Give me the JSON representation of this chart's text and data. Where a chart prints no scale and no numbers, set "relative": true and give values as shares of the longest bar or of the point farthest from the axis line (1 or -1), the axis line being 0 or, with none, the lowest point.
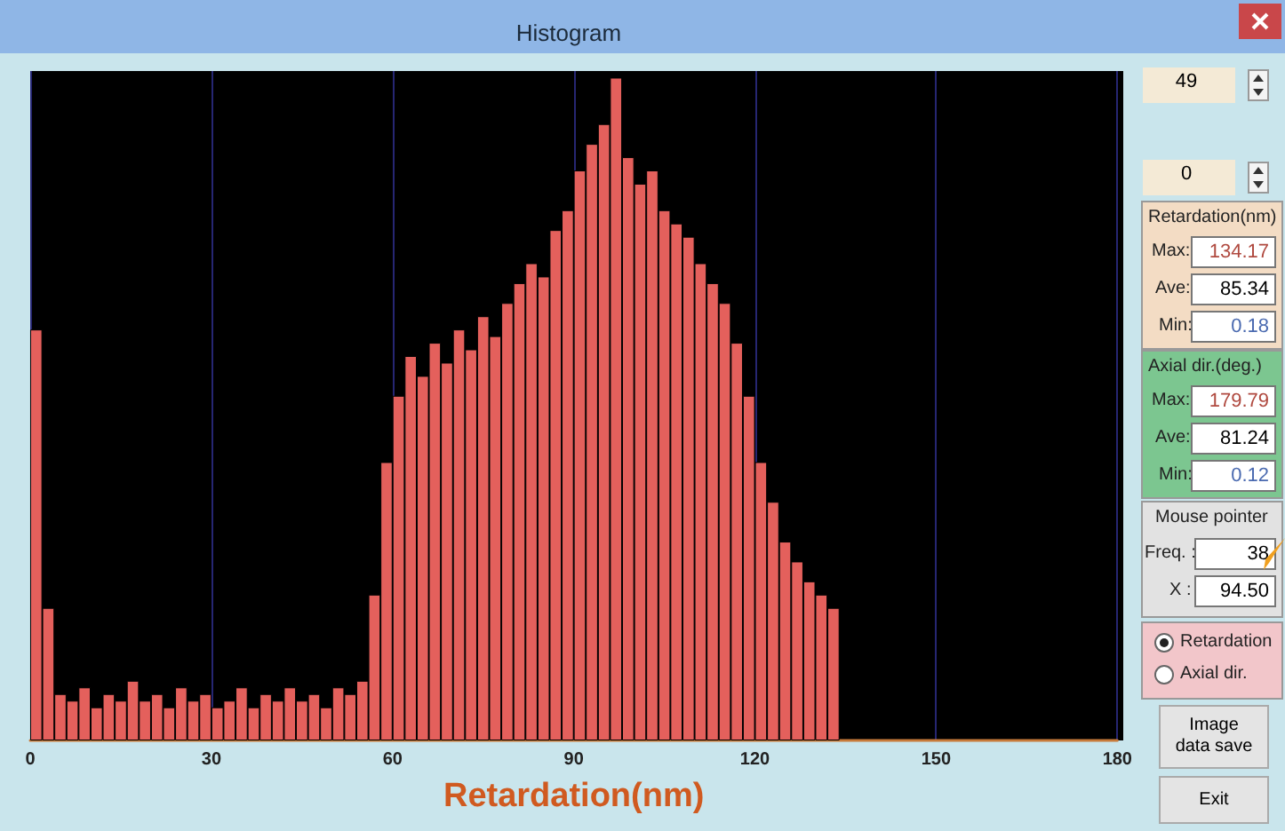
{
  "chart_data": [
    {
      "type": "bar",
      "title": "Histogram",
      "xlabel": "Retardation(nm)",
      "relative": true,
      "color": "#e4605c",
      "x": [
        1,
        3,
        5,
        7,
        9,
        11,
        13,
        15,
        17,
        19,
        21,
        23,
        25,
        27,
        29,
        31,
        33,
        35,
        37,
        39,
        41,
        43,
        45,
        47,
        49,
        51,
        53,
        55,
        57,
        59,
        61,
        63,
        65,
        67,
        69,
        71,
        73,
        75,
        77,
        79,
        81,
        83,
        85,
        87,
        89,
        91,
        93,
        95,
        97,
        99,
        101,
        103,
        105,
        107,
        109,
        111,
        113,
        115,
        117,
        119,
        121,
        123,
        125,
        127,
        129,
        131,
        133
      ],
      "values": [
        0.62,
        0.2,
        0.07,
        0.06,
        0.08,
        0.05,
        0.07,
        0.06,
        0.09,
        0.06,
        0.07,
        0.05,
        0.08,
        0.06,
        0.07,
        0.05,
        0.06,
        0.08,
        0.05,
        0.07,
        0.06,
        0.08,
        0.06,
        0.07,
        0.05,
        0.08,
        0.07,
        0.09,
        0.22,
        0.42,
        0.52,
        0.58,
        0.55,
        0.6,
        0.57,
        0.62,
        0.59,
        0.64,
        0.61,
        0.66,
        0.69,
        0.72,
        0.7,
        0.77,
        0.8,
        0.86,
        0.9,
        0.93,
        1,
        0.88,
        0.84,
        0.86,
        0.8,
        0.78,
        0.76,
        0.72,
        0.69,
        0.66,
        0.6,
        0.52,
        0.42,
        0.36,
        0.3,
        0.27,
        0.24,
        0.22,
        0.2
      ],
      "xlim": [
        0,
        180
      ],
      "xticks": [
        0,
        30,
        60,
        90,
        120,
        150,
        180
      ],
      "grid": "x"
    },
    {
      "type": "other",
      "annotations": [
        "49",
        "0",
        "Retardation(nm)",
        "Max:",
        "134.17",
        "Ave:",
        "85.34",
        "Min:",
        "0.18",
        "Axial dir.(deg.)",
        "Max:",
        "179.79",
        "Ave:",
        "81.24",
        "Min:",
        "0.12",
        "Mouse pointer",
        "Freq. :",
        "38",
        "X :",
        "94.50",
        "Retardation",
        "Axial dir.",
        "Image data save",
        "Exit"
      ]
    }
  ]
}
